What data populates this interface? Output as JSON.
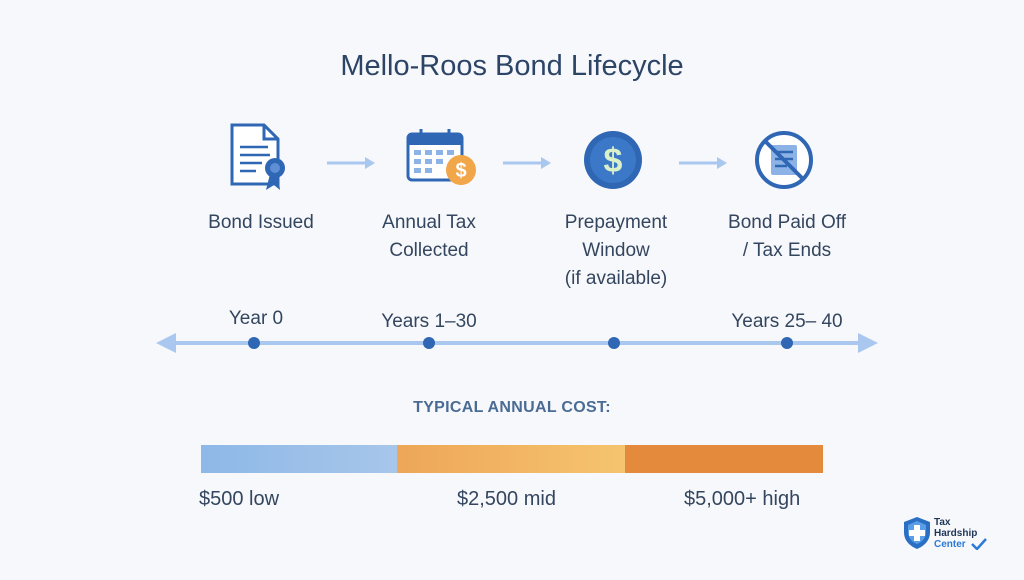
{
  "title": "Mello-Roos Bond Lifecycle",
  "steps": [
    {
      "line1": "Bond Issued",
      "line2": "",
      "line3": "",
      "icon": "certificate-icon"
    },
    {
      "line1": "Annual Tax",
      "line2": "Collected",
      "line3": "",
      "icon": "calendar-dollar-icon"
    },
    {
      "line1": "Prepayment",
      "line2": "Window",
      "line3": "(if available)",
      "icon": "dollar-coin-icon"
    },
    {
      "line1": "Bond Paid Off",
      "line2": "/ Tax Ends",
      "line3": "",
      "icon": "no-document-icon"
    }
  ],
  "timeline": {
    "labels": [
      "Year 0",
      "Years 1–30",
      "",
      "Years 25– 40"
    ]
  },
  "cost": {
    "heading": "TYPICAL ANNUAL COST:",
    "low_label": "$500 low",
    "mid_label": "$2,500 mid",
    "high_label": "$5,000+ high"
  },
  "badge": {
    "line1": "Tax",
    "line2": "Hardship",
    "line3": "Center"
  },
  "colors": {
    "accent_blue": "#2f67b5",
    "light_blue": "#a9c7ef",
    "orange": "#e48a3d"
  }
}
